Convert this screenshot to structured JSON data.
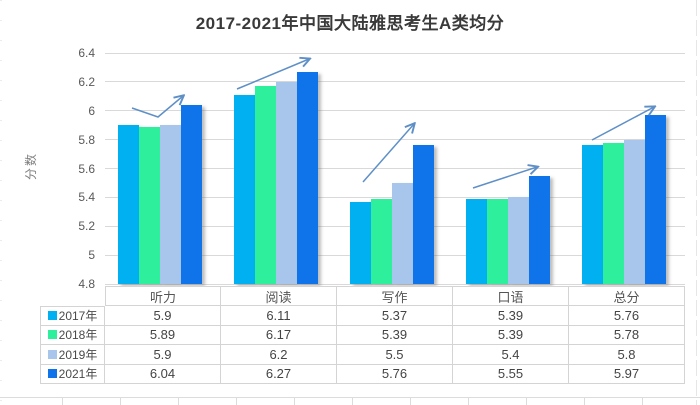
{
  "chart_data": {
    "type": "bar",
    "title": "2017-2021年中国大陆雅思考生A类均分",
    "xlabel": "",
    "ylabel": "分数",
    "categories": [
      "听力",
      "阅读",
      "写作",
      "口语",
      "总分"
    ],
    "series": [
      {
        "name": "2017年",
        "color": "#00b0f0",
        "values": [
          5.9,
          6.11,
          5.37,
          5.39,
          5.76
        ]
      },
      {
        "name": "2018年",
        "color": "#2ef09c",
        "values": [
          5.89,
          6.17,
          5.39,
          5.39,
          5.78
        ]
      },
      {
        "name": "2019年",
        "color": "#a8c6ec",
        "values": [
          5.9,
          6.2,
          5.5,
          5.4,
          5.8
        ]
      },
      {
        "name": "2021年",
        "color": "#0f73ea",
        "values": [
          6.04,
          6.27,
          5.76,
          5.55,
          5.97
        ]
      }
    ],
    "ylim": [
      4.8,
      6.4
    ],
    "yticks": [
      6.4,
      6.2,
      6,
      5.8,
      5.6,
      5.4,
      5.2,
      5,
      4.8
    ],
    "grid": true,
    "gridline_color": "#d9d9d9",
    "legend_position": "table-left-column",
    "data_table_shown": true,
    "annotations": {
      "trend_arrow_color": "#5e8fc6",
      "trend_arrows": [
        {
          "category": "听力",
          "points": [
            [
              132,
              108
            ],
            [
              158,
              117
            ],
            [
              183,
              96
            ]
          ]
        },
        {
          "category": "阅读",
          "points": [
            [
              237,
              89
            ],
            [
              309,
              59
            ]
          ]
        },
        {
          "category": "写作",
          "points": [
            [
              363,
              182
            ],
            [
              414,
              124
            ]
          ]
        },
        {
          "category": "口语",
          "points": [
            [
              473,
              188
            ],
            [
              537,
              167
            ]
          ]
        },
        {
          "category": "总分",
          "points": [
            [
              592,
              140
            ],
            [
              654,
              107
            ]
          ]
        }
      ]
    }
  }
}
